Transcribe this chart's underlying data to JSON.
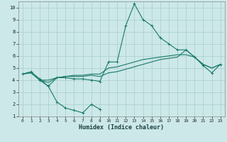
{
  "xlabel": "Humidex (Indice chaleur)",
  "bg_color": "#cce8e8",
  "grid_color": "#aacccc",
  "line_color": "#1a7a6a",
  "xlim": [
    -0.5,
    23.5
  ],
  "ylim": [
    1,
    10.5
  ],
  "xticks": [
    0,
    1,
    2,
    3,
    4,
    5,
    6,
    7,
    8,
    9,
    10,
    11,
    12,
    13,
    14,
    15,
    16,
    17,
    18,
    19,
    20,
    21,
    22,
    23
  ],
  "yticks": [
    1,
    2,
    3,
    4,
    5,
    6,
    7,
    8,
    9,
    10
  ],
  "line1_x": [
    0,
    1,
    2,
    3,
    4,
    5,
    6,
    7,
    8,
    9,
    10,
    11,
    12,
    13,
    14,
    15,
    16,
    17,
    18,
    19,
    20,
    21,
    22,
    23
  ],
  "line1_y": [
    4.5,
    4.7,
    4.1,
    3.5,
    4.2,
    4.2,
    4.1,
    4.1,
    4.0,
    3.9,
    5.5,
    5.5,
    8.5,
    10.3,
    9.0,
    8.5,
    7.5,
    7.0,
    6.5,
    6.5,
    5.9,
    5.2,
    4.6,
    5.3
  ],
  "line2_x": [
    0,
    1,
    2,
    3,
    4,
    5,
    6,
    7,
    8,
    9,
    10,
    11,
    12,
    13,
    14,
    15,
    16,
    17,
    18,
    19,
    20,
    21,
    22,
    23
  ],
  "line2_y": [
    4.5,
    4.6,
    4.0,
    4.0,
    4.2,
    4.3,
    4.4,
    4.4,
    4.5,
    4.5,
    5.0,
    5.1,
    5.3,
    5.5,
    5.7,
    5.8,
    5.9,
    6.0,
    6.1,
    6.1,
    5.9,
    5.3,
    5.0,
    5.3
  ],
  "line3_x": [
    0,
    1,
    2,
    3,
    4,
    5,
    6,
    7,
    8,
    9,
    10,
    11,
    12,
    13,
    14,
    15,
    16,
    17,
    18,
    19,
    20,
    21,
    22,
    23
  ],
  "line3_y": [
    4.5,
    4.6,
    4.0,
    3.8,
    4.2,
    4.3,
    4.3,
    4.3,
    4.4,
    4.3,
    4.6,
    4.7,
    4.9,
    5.1,
    5.3,
    5.5,
    5.7,
    5.8,
    5.9,
    6.5,
    5.9,
    5.3,
    5.0,
    5.3
  ],
  "curve_low_x": [
    2,
    3,
    4,
    5,
    6,
    7,
    8,
    9
  ],
  "curve_low_y": [
    4.0,
    3.5,
    2.2,
    1.7,
    1.5,
    1.3,
    2.0,
    1.6
  ]
}
